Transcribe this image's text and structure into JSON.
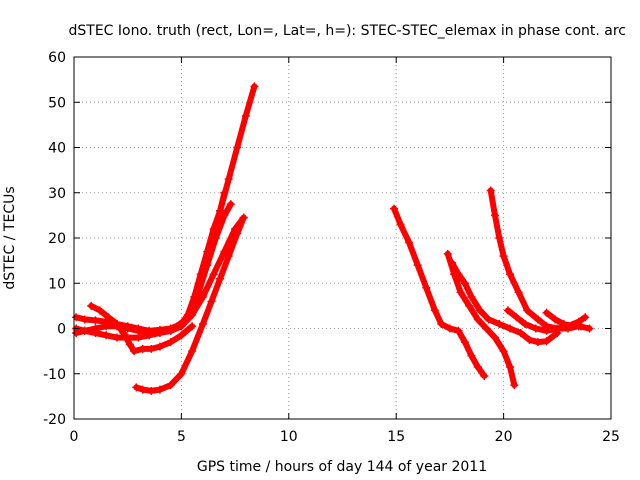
{
  "chart_data": {
    "type": "scatter",
    "title": "dSTEC Iono. truth (rect, Lon=, Lat=, h=): STEC-STEC_elemax in phase cont. arc",
    "xlabel": "GPS time / hours of day 144 of year 2011",
    "ylabel": "dSTEC  / TECUs",
    "xlim": [
      0,
      25
    ],
    "ylim": [
      -20,
      60
    ],
    "xticks": [
      0,
      5,
      10,
      15,
      20,
      25
    ],
    "yticks": [
      -20,
      -10,
      0,
      10,
      20,
      30,
      40,
      50,
      60
    ],
    "grid": true,
    "marker": "plus",
    "color": "#ff0000",
    "series": [
      {
        "points": [
          [
            0.1,
            2.5
          ],
          [
            0.5,
            2
          ],
          [
            1,
            1.8
          ],
          [
            1.5,
            1.5
          ],
          [
            2,
            1
          ],
          [
            2.5,
            0.5
          ],
          [
            3,
            0
          ],
          [
            3.5,
            -0.5
          ],
          [
            4,
            -0.3
          ],
          [
            4.5,
            0
          ],
          [
            5,
            1
          ],
          [
            5.3,
            3
          ],
          [
            5.6,
            7
          ],
          [
            5.9,
            12
          ],
          [
            6.2,
            17
          ],
          [
            6.5,
            22
          ],
          [
            6.8,
            26
          ],
          [
            7,
            30
          ]
        ]
      },
      {
        "points": [
          [
            0.1,
            -1
          ],
          [
            0.5,
            -0.5
          ],
          [
            1,
            0
          ],
          [
            1.5,
            0.5
          ],
          [
            2,
            0.5
          ],
          [
            2.5,
            0
          ],
          [
            3,
            -0.5
          ],
          [
            3.5,
            -1
          ],
          [
            4,
            -0.8
          ],
          [
            4.5,
            -0.5
          ],
          [
            5,
            0.5
          ],
          [
            5.4,
            3
          ],
          [
            5.8,
            8
          ],
          [
            6.2,
            14
          ],
          [
            6.6,
            20
          ],
          [
            7,
            25
          ],
          [
            7.3,
            27.5
          ]
        ]
      },
      {
        "points": [
          [
            0.1,
            0
          ],
          [
            0.5,
            -0.5
          ],
          [
            1,
            -1
          ],
          [
            1.5,
            -1.5
          ],
          [
            2,
            -2
          ],
          [
            2.5,
            -2
          ],
          [
            3,
            -2
          ],
          [
            3.5,
            -1.5
          ],
          [
            4,
            -1
          ],
          [
            4.5,
            -0.5
          ],
          [
            5,
            0.5
          ],
          [
            5.5,
            3
          ],
          [
            6,
            7
          ],
          [
            6.5,
            12
          ],
          [
            7,
            17
          ],
          [
            7.5,
            22
          ],
          [
            7.9,
            24.5
          ]
        ]
      },
      {
        "points": [
          [
            0.8,
            5
          ],
          [
            1.2,
            4
          ],
          [
            1.6,
            2.5
          ],
          [
            2,
            1
          ],
          [
            2.3,
            -1
          ],
          [
            2.6,
            -3.5
          ],
          [
            2.8,
            -5
          ],
          [
            3.2,
            -4.5
          ],
          [
            3.6,
            -4.5
          ],
          [
            4,
            -4
          ],
          [
            4.5,
            -3
          ],
          [
            5,
            -1.5
          ],
          [
            5.5,
            0.5
          ]
        ]
      },
      {
        "points": [
          [
            4.8,
            0.5
          ],
          [
            5.2,
            2
          ],
          [
            5.6,
            6
          ],
          [
            6,
            12
          ],
          [
            6.4,
            19
          ],
          [
            6.8,
            26
          ],
          [
            7.2,
            33
          ],
          [
            7.6,
            40
          ],
          [
            8,
            47
          ],
          [
            8.4,
            53.5
          ]
        ]
      },
      {
        "points": [
          [
            2.9,
            -13
          ],
          [
            3.2,
            -13.5
          ],
          [
            3.6,
            -13.8
          ],
          [
            4,
            -13.5
          ],
          [
            4.5,
            -12.5
          ],
          [
            5,
            -10
          ],
          [
            5.5,
            -5
          ],
          [
            6,
            1
          ],
          [
            6.4,
            6
          ],
          [
            6.8,
            11
          ],
          [
            7.2,
            16
          ],
          [
            7.6,
            21
          ],
          [
            7.9,
            24.5
          ]
        ]
      },
      {
        "points": [
          [
            14.9,
            26.5
          ],
          [
            15.2,
            23
          ],
          [
            15.6,
            19
          ],
          [
            16,
            14
          ],
          [
            16.4,
            9
          ],
          [
            16.8,
            4
          ],
          [
            17.1,
            1
          ],
          [
            17.5,
            0
          ],
          [
            17.9,
            -0.5
          ],
          [
            18.2,
            -3
          ],
          [
            18.5,
            -6
          ],
          [
            18.8,
            -8.5
          ],
          [
            19.1,
            -10.5
          ]
        ]
      },
      {
        "points": [
          [
            17.4,
            16.5
          ],
          [
            17.7,
            12
          ],
          [
            18,
            8
          ],
          [
            18.4,
            5
          ],
          [
            18.8,
            2
          ],
          [
            19.2,
            0
          ],
          [
            19.6,
            -2
          ],
          [
            20,
            -5
          ],
          [
            20.3,
            -8.5
          ],
          [
            20.5,
            -12.5
          ]
        ]
      },
      {
        "points": [
          [
            17.6,
            14.5
          ],
          [
            17.9,
            12
          ],
          [
            18.2,
            10
          ],
          [
            18.5,
            7
          ],
          [
            18.9,
            4
          ],
          [
            19.3,
            2
          ],
          [
            19.8,
            1
          ],
          [
            20.3,
            0
          ],
          [
            20.8,
            -1
          ],
          [
            21.2,
            -2.5
          ],
          [
            21.6,
            -3
          ],
          [
            22,
            -2.8
          ],
          [
            22.5,
            -1
          ]
        ]
      },
      {
        "points": [
          [
            19.4,
            30.5
          ],
          [
            19.6,
            25
          ],
          [
            19.8,
            20
          ],
          [
            20,
            16
          ],
          [
            20.3,
            12
          ],
          [
            20.7,
            8
          ],
          [
            21.1,
            4
          ],
          [
            21.6,
            2
          ],
          [
            22,
            0.5
          ],
          [
            22.5,
            0
          ],
          [
            23,
            0
          ],
          [
            23.5,
            0.5
          ],
          [
            24,
            0
          ]
        ]
      },
      {
        "points": [
          [
            20.2,
            4
          ],
          [
            20.6,
            2.5
          ],
          [
            21,
            1
          ],
          [
            21.5,
            0
          ],
          [
            22,
            -0.5
          ],
          [
            22.5,
            0
          ],
          [
            23,
            0.5
          ],
          [
            23.5,
            1.5
          ],
          [
            23.8,
            2.5
          ]
        ]
      },
      {
        "points": [
          [
            22,
            3.5
          ],
          [
            22.4,
            2
          ],
          [
            22.8,
            1
          ],
          [
            23.2,
            0.5
          ],
          [
            23.6,
            0.5
          ]
        ]
      }
    ]
  }
}
